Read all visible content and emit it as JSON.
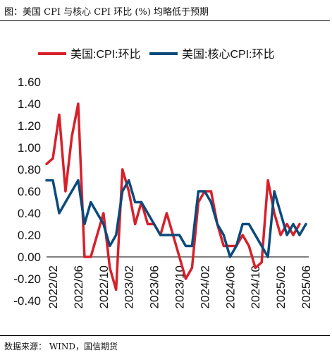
{
  "figure": {
    "title": "图：美国 CPI 与核心 CPI 环比 (%) 均略低于预期",
    "source": "数据来源： WIND，国信期货"
  },
  "colors": {
    "headline": "#d7202a",
    "core": "#0b4a7c",
    "zero_line": "#000000"
  },
  "chart_data": {
    "type": "line",
    "title": "",
    "xlabel": "",
    "ylabel": "",
    "ylim": [
      -0.4,
      1.6
    ],
    "yticks": [
      -0.4,
      -0.2,
      0.0,
      0.2,
      0.4,
      0.6,
      0.8,
      1.0,
      1.2,
      1.4,
      1.6
    ],
    "ytick_labels": [
      "-0.40",
      "-0.20",
      "0.00",
      "0.20",
      "0.40",
      "0.60",
      "0.80",
      "1.00",
      "1.20",
      "1.40",
      "1.60"
    ],
    "xtick_labels": [
      "2022/02",
      "2022/06",
      "2022/10",
      "2023/02",
      "2023/06",
      "2023/10",
      "2024/02",
      "2024/06",
      "2024/10",
      "2025/02",
      "2025/06"
    ],
    "legend_position": "top",
    "series": [
      {
        "name": "美国:CPI:环比",
        "color": "#d7202a",
        "points": [
          [
            "2022/01",
            0.85
          ],
          [
            "2022/02",
            0.9
          ],
          [
            "2022/03",
            1.3
          ],
          [
            "2022/04",
            0.6
          ],
          [
            "2022/05",
            1.1
          ],
          [
            "2022/06",
            1.4
          ],
          [
            "2022/07",
            0.0
          ],
          [
            "2022/08",
            0.0
          ],
          [
            "2022/09",
            0.2
          ],
          [
            "2022/10",
            0.4
          ],
          [
            "2022/11",
            -0.1
          ],
          [
            "2022/12",
            -0.3
          ],
          [
            "2023/01",
            0.8
          ],
          [
            "2023/02",
            0.6
          ],
          [
            "2023/03",
            0.3
          ],
          [
            "2023/04",
            0.5
          ],
          [
            "2023/05",
            0.3
          ],
          [
            "2023/06",
            0.3
          ],
          [
            "2023/07",
            0.2
          ],
          [
            "2023/08",
            0.4
          ],
          [
            "2023/09",
            0.2
          ],
          [
            "2023/10",
            0.0
          ],
          [
            "2023/11",
            -0.2
          ],
          [
            "2023/12",
            -0.1
          ],
          [
            "2024/01",
            0.5
          ],
          [
            "2024/02",
            0.6
          ],
          [
            "2024/03",
            0.6
          ],
          [
            "2024/04",
            0.3
          ],
          [
            "2024/05",
            0.1
          ],
          [
            "2024/06",
            0.1
          ],
          [
            "2024/07",
            0.1
          ],
          [
            "2024/08",
            0.2
          ],
          [
            "2024/09",
            0.1
          ],
          [
            "2024/10",
            -0.1
          ],
          [
            "2024/11",
            -0.05
          ],
          [
            "2024/12",
            0.7
          ],
          [
            "2025/01",
            0.4
          ],
          [
            "2025/02",
            0.2
          ],
          [
            "2025/03",
            0.3
          ],
          [
            "2025/04",
            0.2
          ],
          [
            "2025/05",
            0.3
          ]
        ]
      },
      {
        "name": "美国:核心CPI:环比",
        "color": "#0b4a7c",
        "points": [
          [
            "2022/01",
            0.7
          ],
          [
            "2022/02",
            0.7
          ],
          [
            "2022/03",
            0.4
          ],
          [
            "2022/04",
            0.5
          ],
          [
            "2022/05",
            0.6
          ],
          [
            "2022/06",
            0.7
          ],
          [
            "2022/07",
            0.3
          ],
          [
            "2022/08",
            0.5
          ],
          [
            "2022/09",
            0.4
          ],
          [
            "2022/10",
            0.3
          ],
          [
            "2022/11",
            0.1
          ],
          [
            "2022/12",
            0.2
          ],
          [
            "2023/01",
            0.6
          ],
          [
            "2023/02",
            0.7
          ],
          [
            "2023/03",
            0.5
          ],
          [
            "2023/04",
            0.5
          ],
          [
            "2023/05",
            0.4
          ],
          [
            "2023/06",
            0.3
          ],
          [
            "2023/07",
            0.2
          ],
          [
            "2023/08",
            0.2
          ],
          [
            "2023/09",
            0.2
          ],
          [
            "2023/10",
            0.2
          ],
          [
            "2023/11",
            0.1
          ],
          [
            "2023/12",
            0.1
          ],
          [
            "2024/01",
            0.6
          ],
          [
            "2024/02",
            0.6
          ],
          [
            "2024/03",
            0.5
          ],
          [
            "2024/04",
            0.3
          ],
          [
            "2024/05",
            0.2
          ],
          [
            "2024/06",
            0.0
          ],
          [
            "2024/07",
            0.1
          ],
          [
            "2024/08",
            0.3
          ],
          [
            "2024/09",
            0.3
          ],
          [
            "2024/10",
            0.2
          ],
          [
            "2024/11",
            0.1
          ],
          [
            "2024/12",
            0.0
          ],
          [
            "2025/01",
            0.6
          ],
          [
            "2025/02",
            0.4
          ],
          [
            "2025/03",
            0.2
          ],
          [
            "2025/04",
            0.3
          ],
          [
            "2025/05",
            0.2
          ],
          [
            "2025/06",
            0.3
          ]
        ]
      }
    ]
  }
}
